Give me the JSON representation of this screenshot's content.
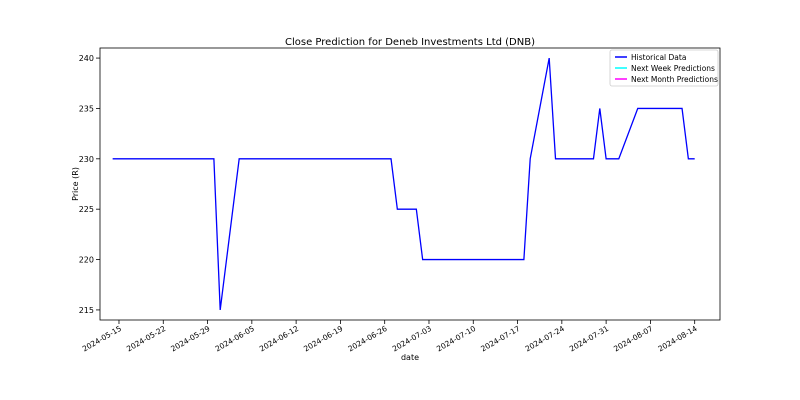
{
  "chart_data": {
    "type": "line",
    "title": "Close Prediction for Deneb Investments Ltd (DNB)",
    "xlabel": "date",
    "ylabel": "Price (R)",
    "x_ticks": [
      "2024-05-15",
      "2024-05-22",
      "2024-05-29",
      "2024-06-05",
      "2024-06-12",
      "2024-06-19",
      "2024-06-26",
      "2024-07-03",
      "2024-07-10",
      "2024-07-17",
      "2024-07-24",
      "2024-07-31",
      "2024-08-07",
      "2024-08-14"
    ],
    "y_ticks": [
      215,
      220,
      225,
      230,
      235,
      240
    ],
    "xlim": [
      "2024-05-12",
      "2024-08-18"
    ],
    "ylim": [
      214,
      241
    ],
    "grid": false,
    "legend_position": "top-right",
    "series": [
      {
        "name": "Historical Data",
        "color": "#0000ff",
        "points": [
          {
            "x": "2024-05-14",
            "y": 230
          },
          {
            "x": "2024-05-30",
            "y": 230
          },
          {
            "x": "2024-05-31",
            "y": 215
          },
          {
            "x": "2024-06-03",
            "y": 230
          },
          {
            "x": "2024-06-05",
            "y": 230
          },
          {
            "x": "2024-06-27",
            "y": 230
          },
          {
            "x": "2024-06-28",
            "y": 225
          },
          {
            "x": "2024-07-01",
            "y": 225
          },
          {
            "x": "2024-07-02",
            "y": 220
          },
          {
            "x": "2024-07-18",
            "y": 220
          },
          {
            "x": "2024-07-19",
            "y": 230
          },
          {
            "x": "2024-07-22",
            "y": 240
          },
          {
            "x": "2024-07-23",
            "y": 230
          },
          {
            "x": "2024-07-29",
            "y": 230
          },
          {
            "x": "2024-07-30",
            "y": 235
          },
          {
            "x": "2024-07-31",
            "y": 230
          },
          {
            "x": "2024-08-02",
            "y": 230
          },
          {
            "x": "2024-08-05",
            "y": 235
          },
          {
            "x": "2024-08-12",
            "y": 235
          },
          {
            "x": "2024-08-13",
            "y": 230
          },
          {
            "x": "2024-08-14",
            "y": 230
          }
        ]
      },
      {
        "name": "Next Week Predictions",
        "color": "#00ffff",
        "points": []
      },
      {
        "name": "Next Month Predictions",
        "color": "#ff00ff",
        "points": []
      }
    ]
  }
}
